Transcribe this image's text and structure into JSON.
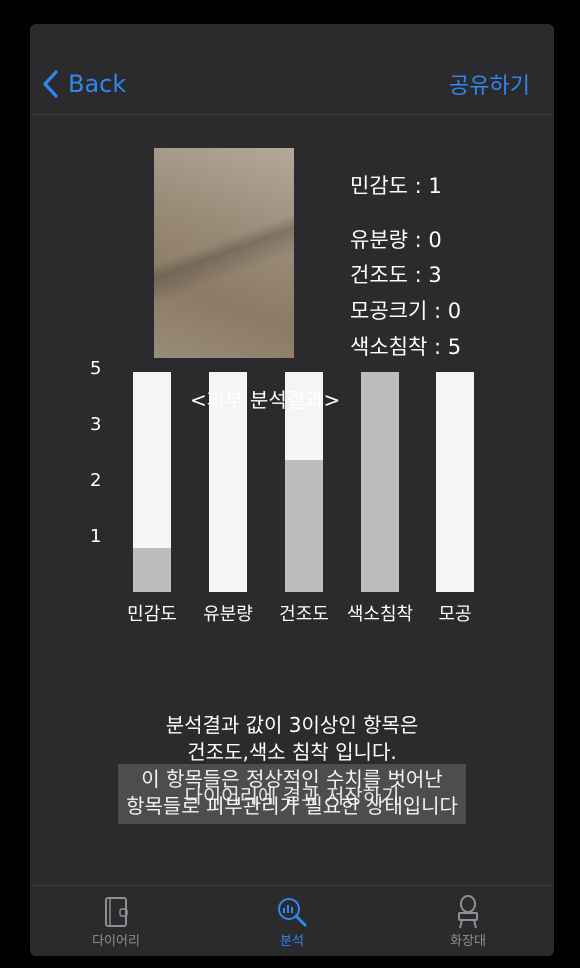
{
  "nav": {
    "back_label": "Back",
    "share_label": "공유하기"
  },
  "metrics": [
    {
      "text": "민감도 : 1"
    },
    {
      "text": "유분량 : 0"
    },
    {
      "text": "건조도 : 3"
    },
    {
      "text": "모공크기 : 0"
    },
    {
      "text": "색소침착 : 5"
    }
  ],
  "chart_data": {
    "type": "bar",
    "title": "<피부 분석결과>",
    "categories": [
      "민감도",
      "유분량",
      "건조도",
      "색소침착",
      "모공"
    ],
    "values": [
      1,
      0,
      3,
      5,
      0
    ],
    "ylim": [
      0,
      5
    ],
    "yticks": [
      "1",
      "2",
      "3",
      "5"
    ],
    "colors": {
      "fill": "#bdbdbd",
      "background": "#f5f5f5"
    }
  },
  "summary": {
    "line1": "분석결과 값이 3이상인 항목은",
    "line2": "건조도,색소 침착 입니다.",
    "line3": "이 항목들은 정상적인 수치를 벗어난",
    "line4": "항목들로 피부관리가 필요한 상태입니다"
  },
  "save_button": {
    "label": "다이어리에 결과 저장하기"
  },
  "tabs": [
    {
      "label": "다이어리",
      "icon": "diary-icon",
      "active": false
    },
    {
      "label": "분석",
      "icon": "analysis-icon",
      "active": true
    },
    {
      "label": "화장대",
      "icon": "vanity-icon",
      "active": false
    }
  ],
  "colors": {
    "accent": "#2f87f0",
    "background": "#2b2b2d"
  }
}
